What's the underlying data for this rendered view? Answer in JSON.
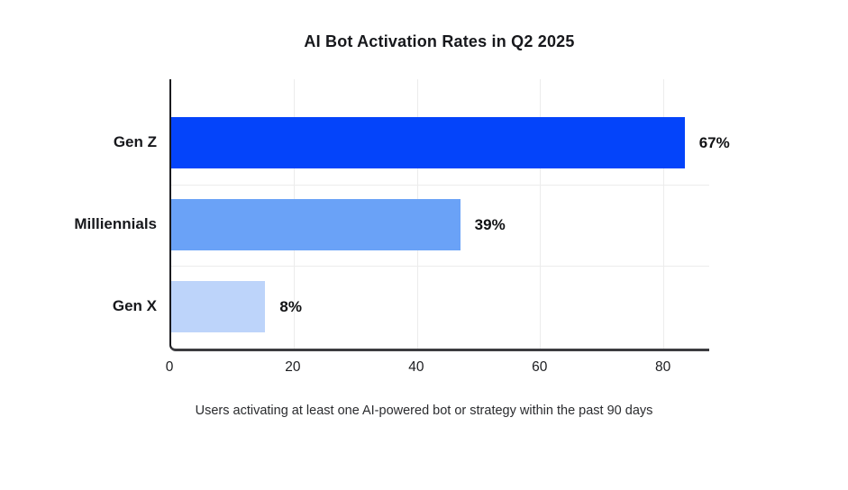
{
  "header": {
    "title": "AI Bot Activation Rates in Q2 2025"
  },
  "footer": {
    "caption": "Users activating at least one AI-powered bot or strategy within the past 90 days"
  },
  "chart_data": {
    "type": "bar",
    "orientation": "horizontal",
    "title": "AI Bot Activation Rates in Q2 2025",
    "caption": "Users activating at least one AI-powered bot or strategy within the past 90 days",
    "categories": [
      "Gen Z",
      "Milliennials",
      "Gen X"
    ],
    "values": [
      67,
      39,
      8
    ],
    "value_labels": [
      "67%",
      "39%",
      "8%"
    ],
    "bar_visual_lengths_axis_units": [
      83.5,
      47,
      15.3
    ],
    "visual_note": "Bars are drawn longer than their labeled percentages (83.5, 47, 15.3 axis units vs labels 67, 39, 8)",
    "bar_colors": [
      "#0444FA",
      "#6AA2F7",
      "#BDD4FA"
    ],
    "xlabel": "",
    "ylabel": "",
    "xticks": [
      0,
      20,
      40,
      60,
      80
    ],
    "xlim": [
      0,
      87.5
    ],
    "grid": true,
    "gridline_color": "#ececec",
    "legend_position": "none"
  }
}
